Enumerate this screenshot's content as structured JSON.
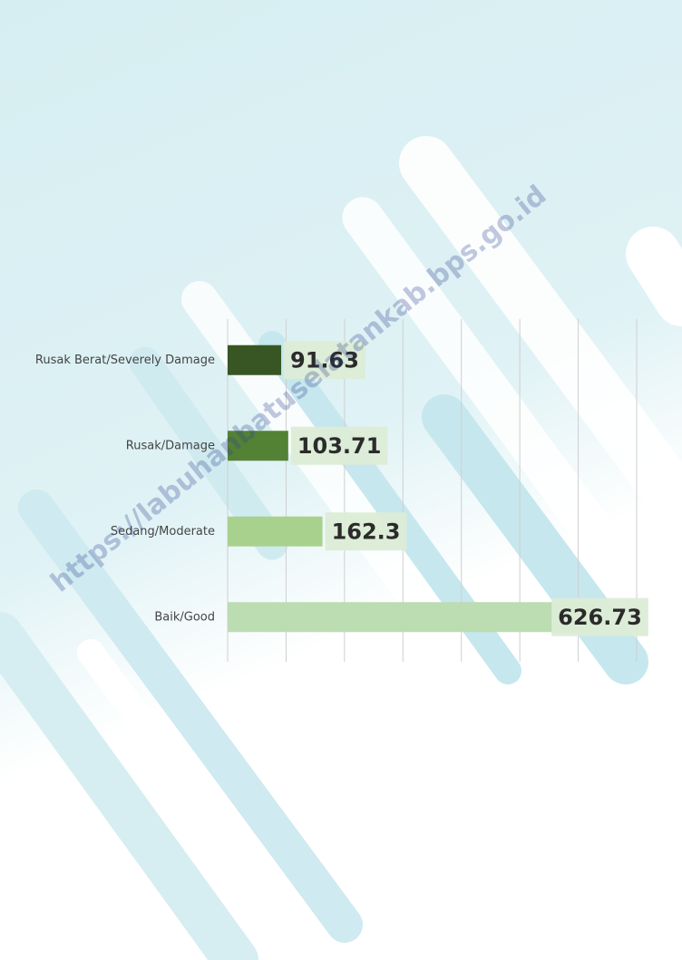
{
  "chart_data": {
    "type": "hbar",
    "categories": [
      "Rusak Berat/Severely Damage",
      "Rusak/Damage",
      "Sedang/Moderate",
      "Baik/Good"
    ],
    "values": [
      91.63,
      103.71,
      162.3,
      626.73
    ],
    "colors": [
      "#375623",
      "#548235",
      "#a9d18e",
      "#bcdcb2"
    ],
    "xlim": [
      0,
      700
    ],
    "xticks": [
      0,
      100,
      200,
      300,
      400,
      500,
      600,
      700
    ],
    "grid": true,
    "watermark": "https://labuhanbatuselatankab.bps.go.id"
  }
}
